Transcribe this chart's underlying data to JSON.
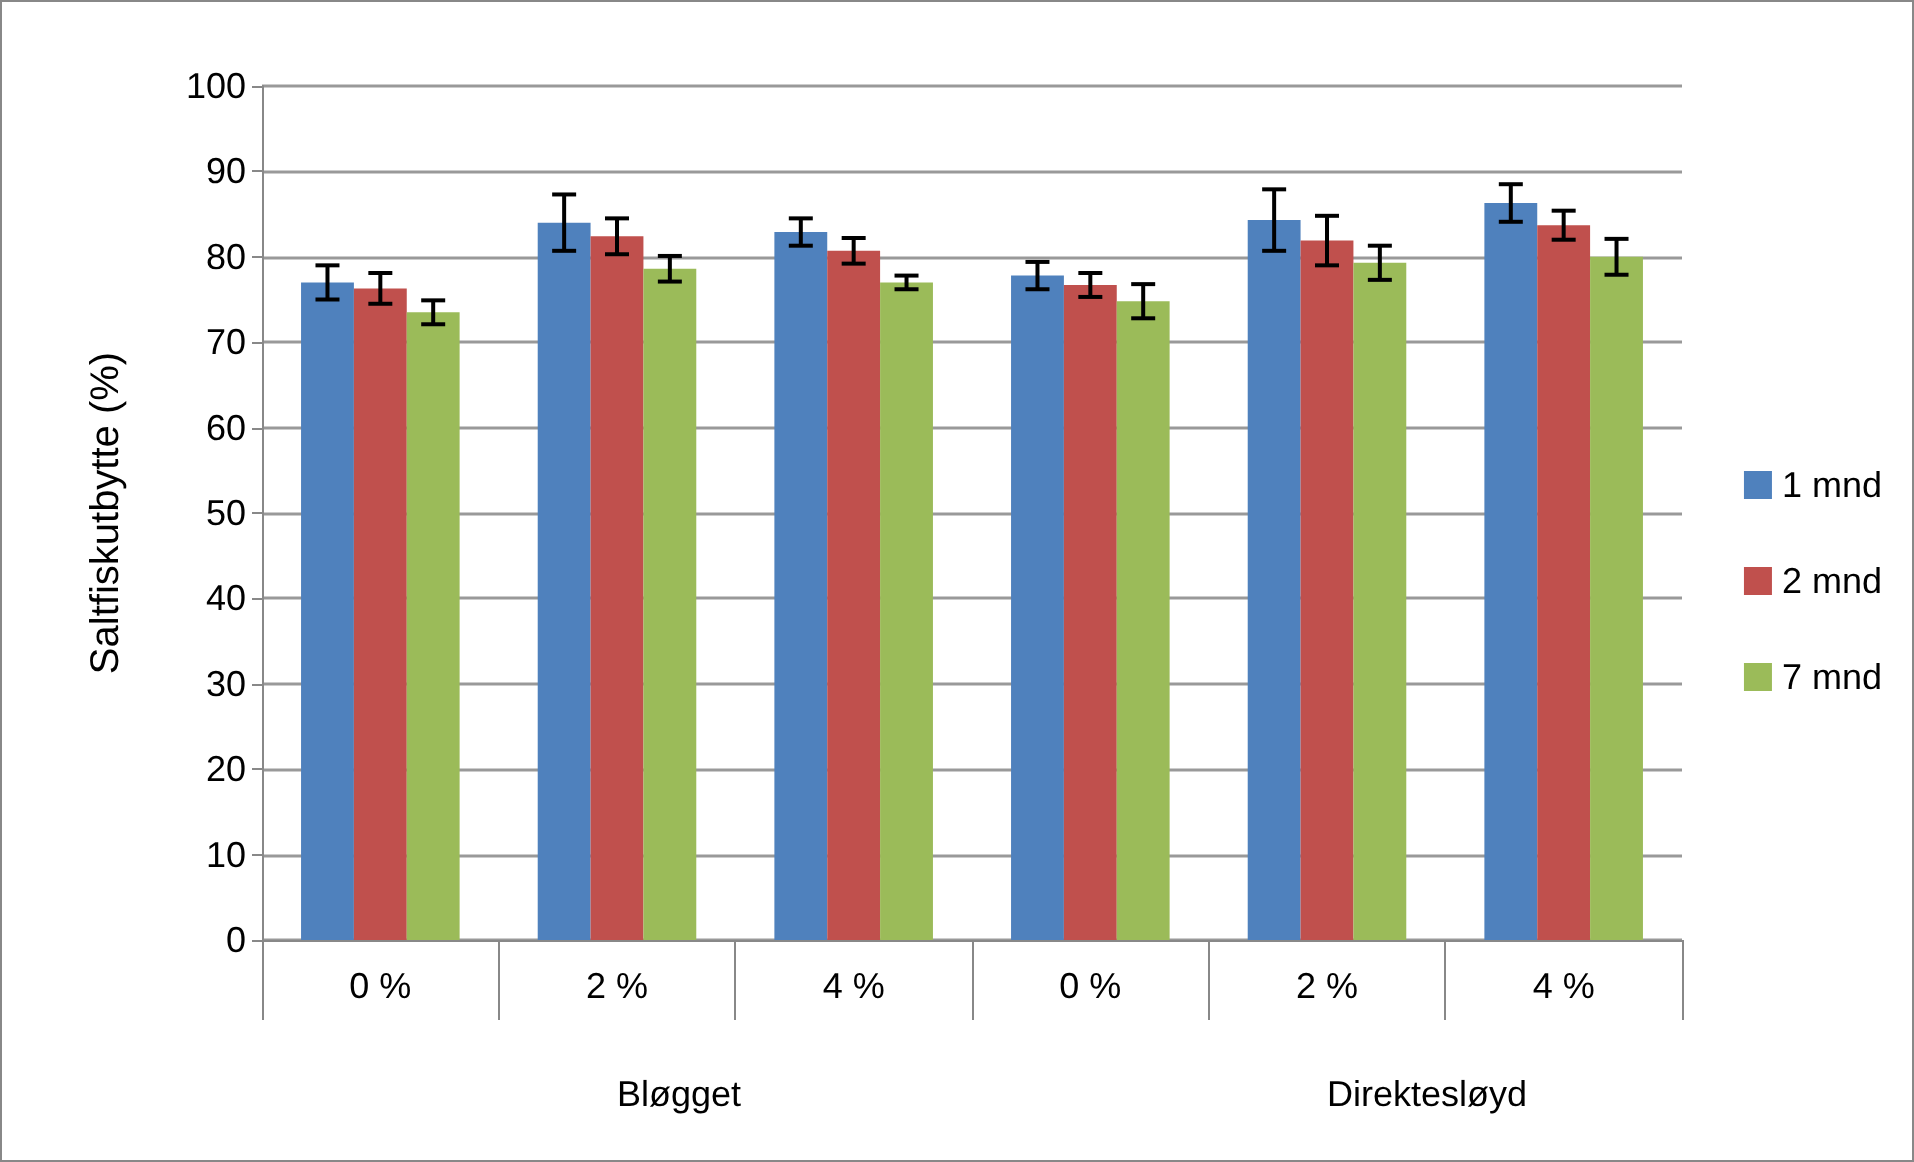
{
  "chart_data": {
    "type": "bar",
    "ylabel": "Saltfiskutbytte (%)",
    "categories": [
      "0 %",
      "2 %",
      "4 %",
      "0 %",
      "2 %",
      "4 %"
    ],
    "series": [
      {
        "name": "1 mnd",
        "color": "#4f81bd",
        "values": [
          77.0,
          84.0,
          82.9,
          77.8,
          84.3,
          86.3
        ],
        "errors": [
          2.0,
          3.3,
          1.6,
          1.6,
          3.6,
          2.2
        ]
      },
      {
        "name": "2 mnd",
        "color": "#c0504d",
        "values": [
          76.3,
          82.4,
          80.7,
          76.7,
          81.9,
          83.7
        ],
        "errors": [
          1.8,
          2.1,
          1.5,
          1.4,
          2.9,
          1.7
        ]
      },
      {
        "name": "7 mnd",
        "color": "#9bbb59",
        "values": [
          73.5,
          78.6,
          77.0,
          74.8,
          79.3,
          80.0
        ],
        "errors": [
          1.4,
          1.5,
          0.8,
          2.0,
          2.0,
          2.1
        ]
      }
    ],
    "ylim": [
      0,
      100
    ],
    "yticks": [
      0,
      10,
      20,
      30,
      40,
      50,
      60,
      70,
      80,
      90,
      100
    ],
    "annotations": [
      "Bløgget",
      "Direktesløyd"
    ],
    "grid": "y",
    "legend": "right"
  }
}
